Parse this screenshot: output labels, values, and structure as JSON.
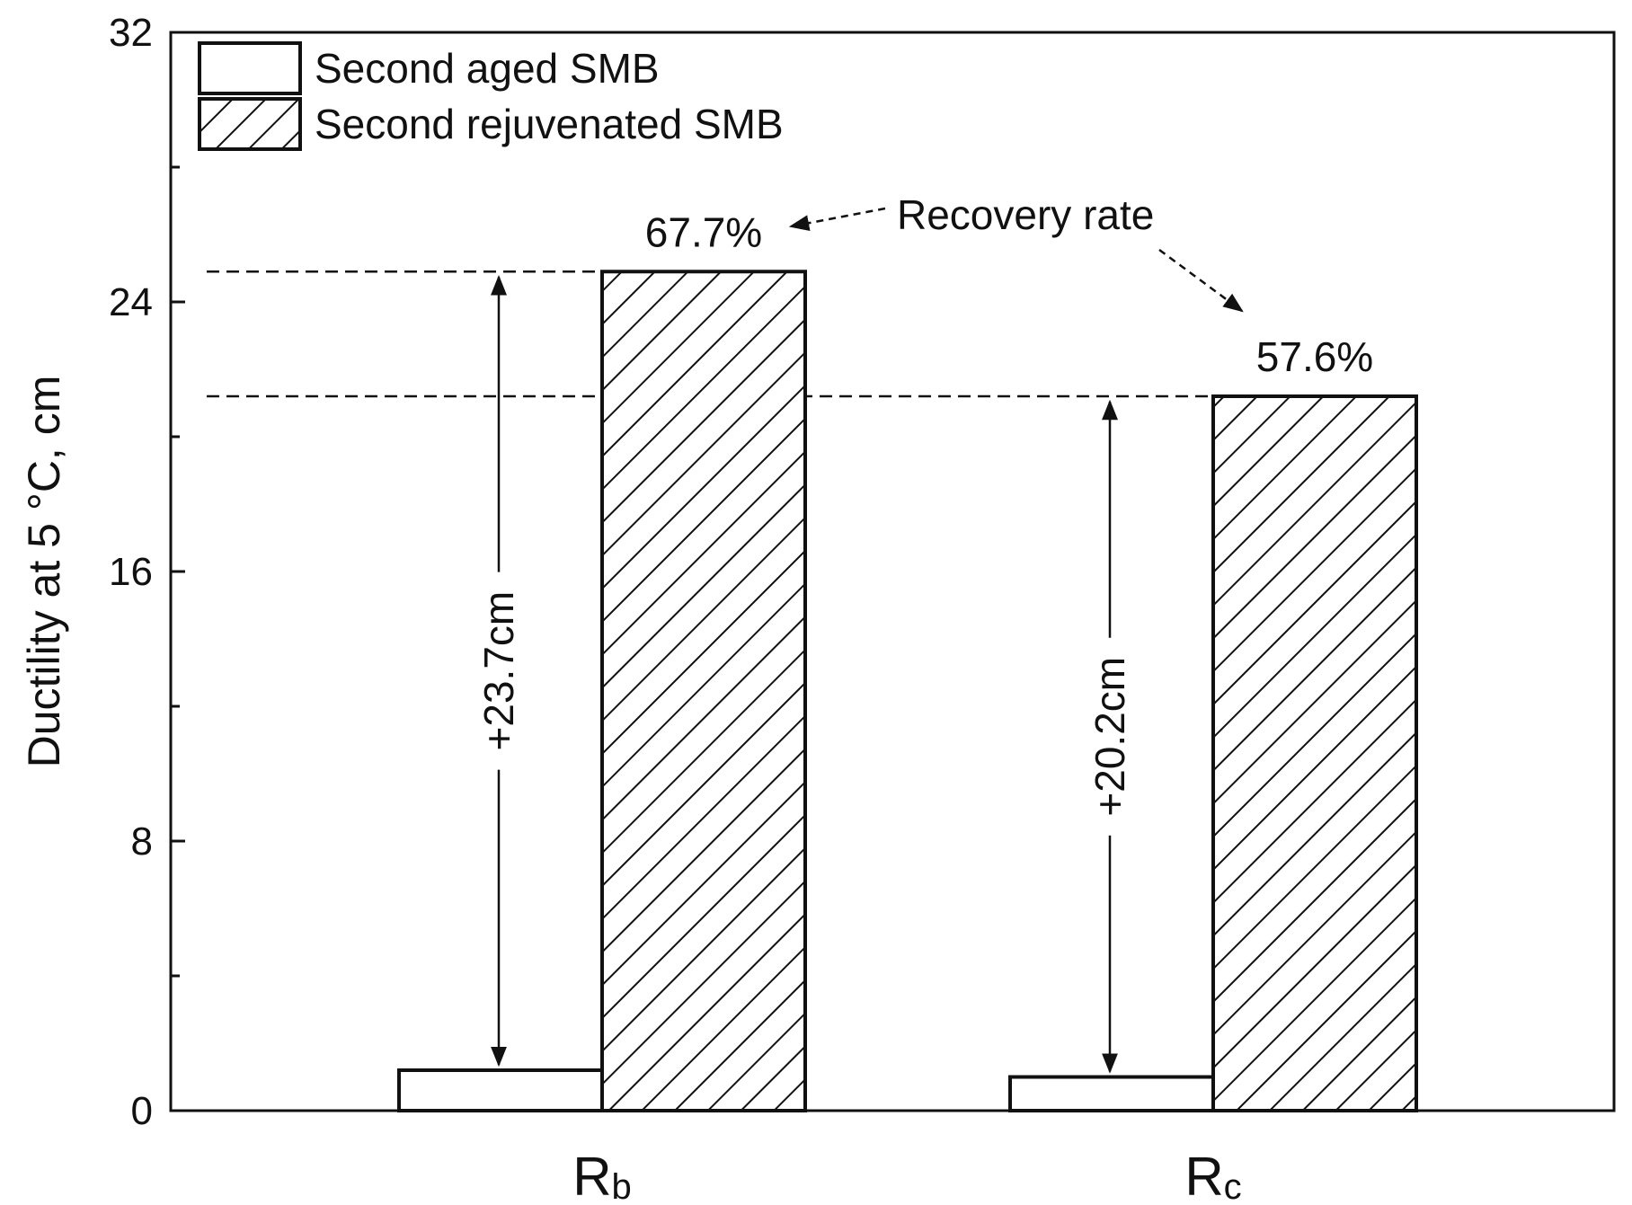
{
  "chart_data": {
    "type": "bar",
    "ylabel": "Ductility at 5 °C, cm",
    "xlabel": "",
    "ylim": [
      0,
      32
    ],
    "yticks": [
      "0",
      "8",
      "16",
      "24",
      "32"
    ],
    "categories": [
      {
        "main": "R",
        "sub": "b"
      },
      {
        "main": "R",
        "sub": "c"
      }
    ],
    "series": [
      {
        "name": "Second aged SMB",
        "pattern": "none",
        "values": [
          1.2,
          1.0
        ]
      },
      {
        "name": "Second rejuvenated SMB",
        "pattern": "hatched",
        "values": [
          24.9,
          21.2
        ]
      }
    ],
    "recovery_rates": [
      "67.7%",
      "57.6%"
    ],
    "increases": [
      "+23.7cm",
      "+20.2cm"
    ],
    "annotation": "Recovery rate",
    "legend_position": "top-left"
  }
}
